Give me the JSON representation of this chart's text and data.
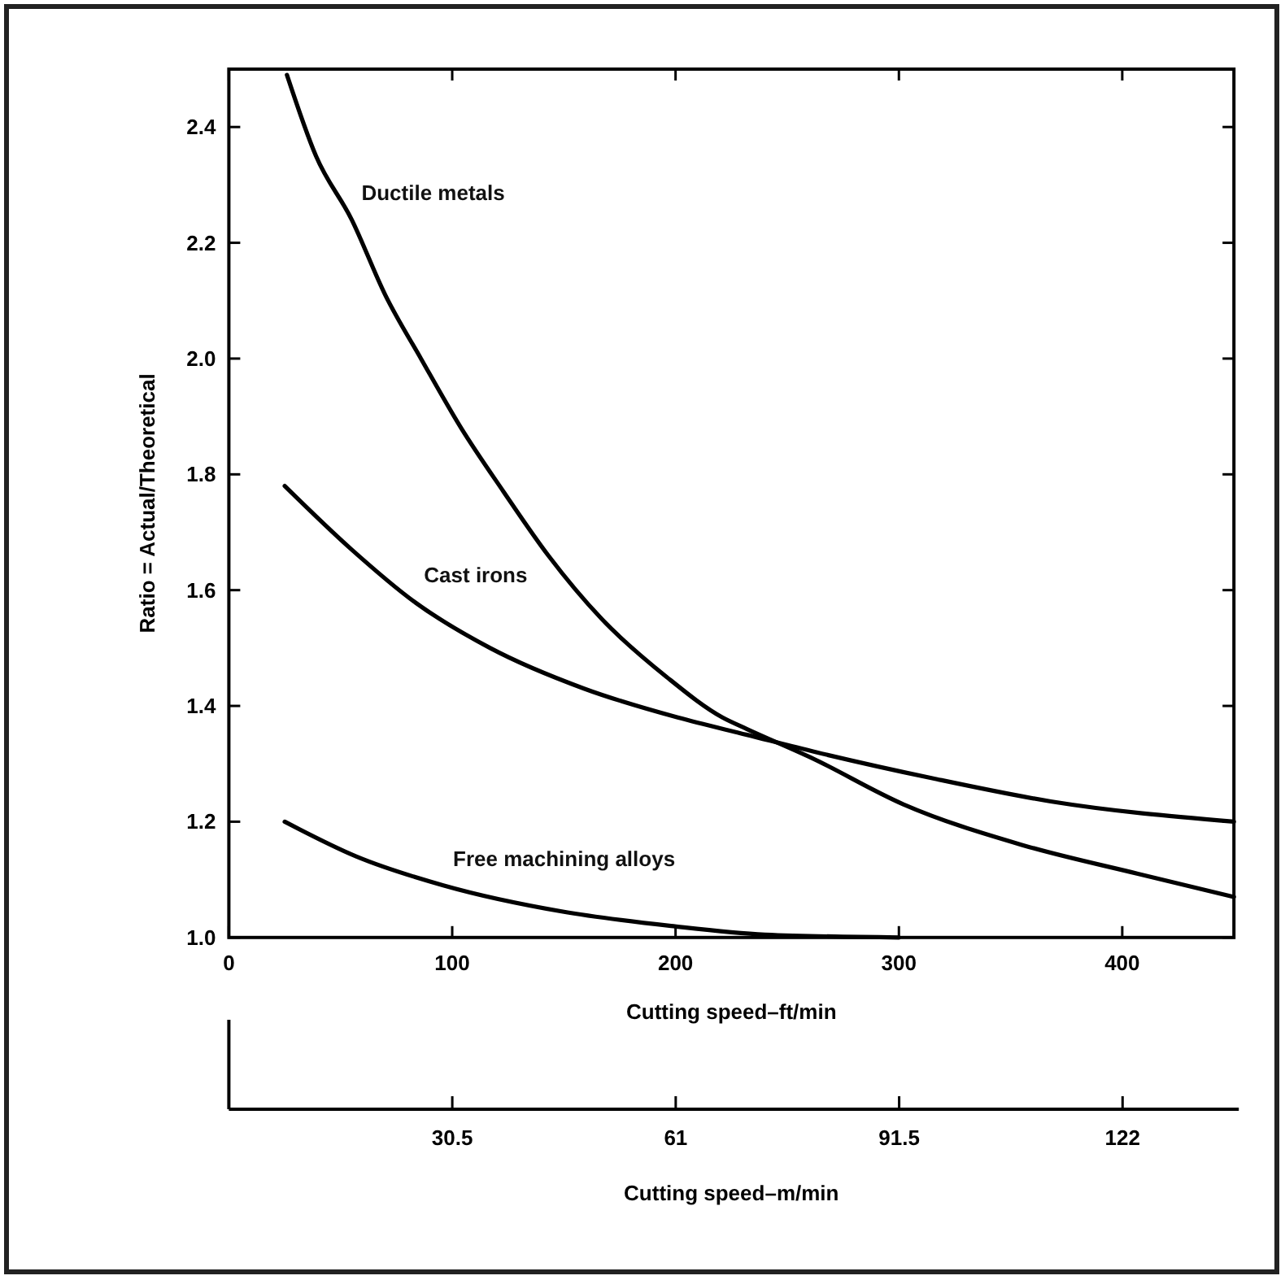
{
  "chart_data": {
    "type": "line",
    "xlabel": "Cutting speed–ft/min",
    "ylabel": "Ratio = Actual/Theoretical",
    "x2label": "Cutting speed–m/min",
    "xlim": [
      0,
      450
    ],
    "xticks": [
      0,
      100,
      200,
      300,
      400
    ],
    "ylim": [
      1.0,
      2.5
    ],
    "yticks": [
      {
        "value": 1.0,
        "label": "1.0"
      },
      {
        "value": 1.2,
        "label": "1.2"
      },
      {
        "value": 1.4,
        "label": "1.4"
      },
      {
        "value": 1.6,
        "label": "1.6"
      },
      {
        "value": 1.8,
        "label": "1.8"
      },
      {
        "value": 2.0,
        "label": "2.0"
      },
      {
        "value": 2.2,
        "label": "2.2"
      },
      {
        "value": 2.4,
        "label": "2.4"
      }
    ],
    "x2lim": [
      0,
      137.2
    ],
    "x2ticks": [
      30.5,
      61,
      91.5,
      122
    ],
    "grid": false,
    "marker": "none",
    "line_style": "solid",
    "series": [
      {
        "name": "Ductile metals",
        "color": "#000000",
        "x": [
          26,
          39,
          55,
          70,
          86,
          104,
          123,
          143,
          167,
          196,
          221,
          232,
          261,
          302,
          355,
          407,
          450
        ],
        "values": [
          2.49,
          2.35,
          2.24,
          2.11,
          2.0,
          1.88,
          1.77,
          1.66,
          1.55,
          1.45,
          1.38,
          1.36,
          1.31,
          1.23,
          1.16,
          1.11,
          1.07
        ]
      },
      {
        "name": "Cast irons",
        "color": "#000000",
        "x": [
          25,
          55,
          83,
          117,
          159,
          201,
          232,
          263,
          315,
          368,
          450
        ],
        "values": [
          1.78,
          1.67,
          1.58,
          1.5,
          1.43,
          1.38,
          1.35,
          1.32,
          1.275,
          1.235,
          1.2
        ]
      },
      {
        "name": "Free machining alloys",
        "color": "#000000",
        "x": [
          25,
          57,
          96,
          149,
          198,
          240,
          300
        ],
        "values": [
          1.2,
          1.14,
          1.09,
          1.045,
          1.02,
          1.005,
          1.0
        ]
      }
    ]
  }
}
